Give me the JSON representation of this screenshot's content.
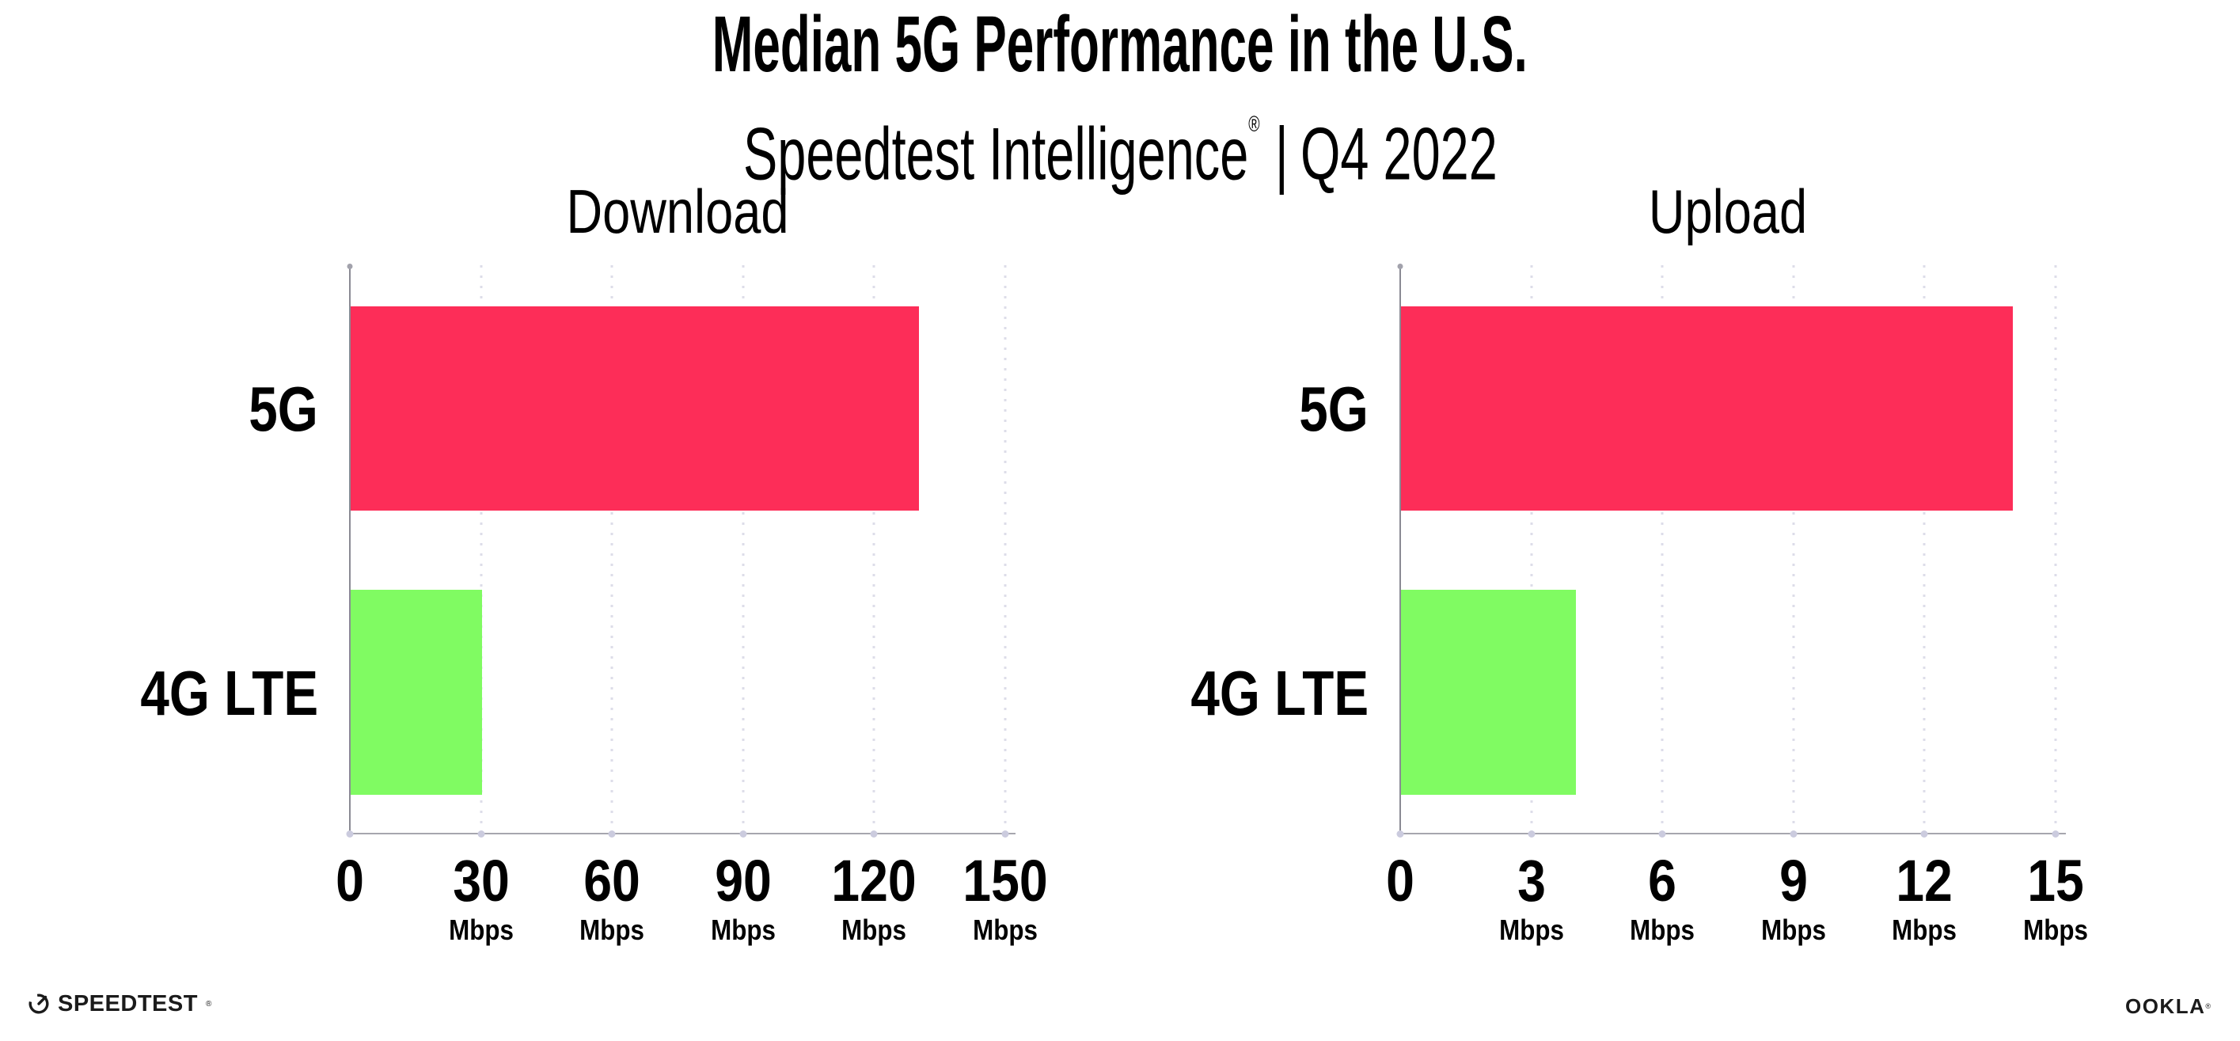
{
  "header": {
    "title": "Median 5G Performance in the U.S.",
    "subtitle_brand": "Speedtest Intelligence",
    "subtitle_trademark": "®",
    "subtitle_separator": "|",
    "subtitle_period": "Q4 2022"
  },
  "chart_data": [
    {
      "type": "bar",
      "orientation": "horizontal",
      "title": "Download",
      "unit": "Mbps",
      "categories": [
        "5G",
        "4G LTE"
      ],
      "values": [
        130,
        30
      ],
      "xlim": [
        0,
        150
      ],
      "xticks": [
        0,
        30,
        60,
        90,
        120,
        150
      ],
      "bar_colors": [
        "#FD2D58",
        "#80FB62"
      ],
      "grid": "dotted-vertical",
      "legend": "none"
    },
    {
      "type": "bar",
      "orientation": "horizontal",
      "title": "Upload",
      "unit": "Mbps",
      "categories": [
        "5G",
        "4G LTE"
      ],
      "values": [
        14,
        4
      ],
      "xlim": [
        0,
        15
      ],
      "xticks": [
        0,
        3,
        6,
        9,
        12,
        15
      ],
      "bar_colors": [
        "#FD2D58",
        "#80FB62"
      ],
      "grid": "dotted-vertical",
      "legend": "none"
    }
  ],
  "footer": {
    "speedtest_wordmark": "SPEEDTEST",
    "speedtest_trademark": "®",
    "ookla_wordmark": "OOKLA",
    "ookla_trademark": "®"
  },
  "colors": {
    "bar_5g": "#FD2D58",
    "bar_4g_lte": "#80FB62",
    "gridline": "#dddde9",
    "tick_dot": "#cbcbde",
    "x_axis": "#a6a6ae",
    "y_axis": "#8a8a94",
    "text": "#000000",
    "background": "#ffffff"
  }
}
